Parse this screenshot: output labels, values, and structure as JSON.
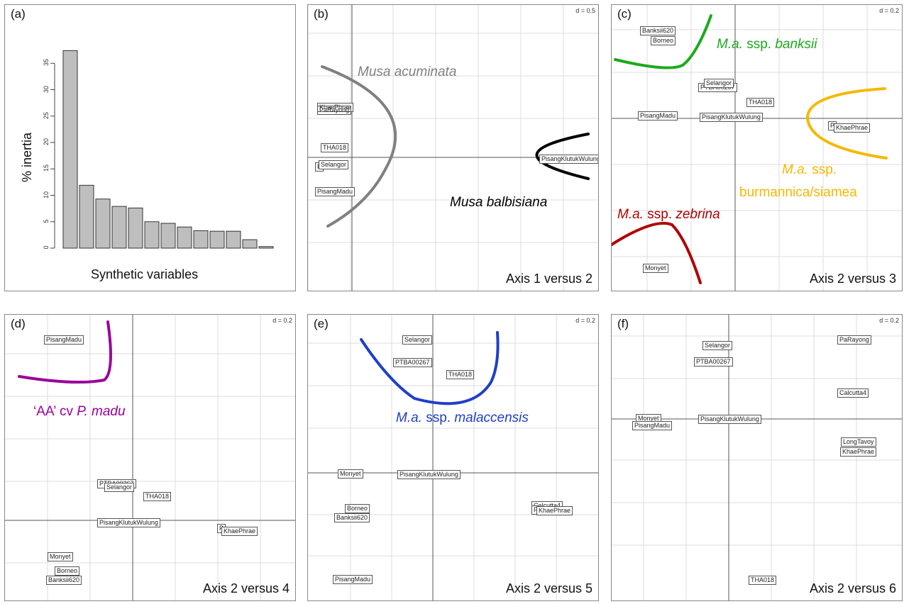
{
  "colors": {
    "bar_fill": "#bebebe",
    "grid": "#dcdcdc",
    "axis": "#555555",
    "musa_acuminata": "#808080",
    "musa_balbisiana": "#000000",
    "banksii": "#1aaa1a",
    "burmannica": "#f5b800",
    "zebrina": "#b00000",
    "madu": "#990099",
    "malaccensis": "#1f3fc8"
  },
  "chart_data": [
    {
      "type": "bar",
      "panel": "(a)",
      "ylabel": "% inertia",
      "xlabel": "Synthetic variables",
      "values": [
        37.4,
        11.9,
        9.3,
        7.9,
        7.6,
        5.0,
        4.7,
        4.0,
        3.3,
        3.2,
        3.2,
        1.6,
        0.3
      ],
      "ylim": [
        0,
        40
      ],
      "yticks": [
        "0",
        "5",
        "10",
        "15",
        "20",
        "25",
        "30",
        "35"
      ],
      "grid": false
    },
    {
      "type": "scatter",
      "panel": "(b)",
      "d_label": "d = 0.5",
      "caption": "Axis 1 versus 2",
      "points": [
        "KhaePhrae",
        "PaRayong",
        "THA018",
        "Selangor",
        "P",
        "PisangMadu",
        "PisangKlutukWulung"
      ],
      "groups": [
        {
          "text": "Musa acuminata",
          "italic": "Musa acuminata",
          "color_key": "musa_acuminata"
        },
        {
          "text": "Musa balbisiana",
          "italic": "Musa balbisiana",
          "color_key": "musa_balbisiana"
        }
      ]
    },
    {
      "type": "scatter",
      "panel": "(c)",
      "d_label": "d = 0.2",
      "caption": "Axis 2 versus 3",
      "points": [
        "Banksii620",
        "Borneo",
        "Selangor",
        "PTBA00267",
        "THA018",
        "PisangMadu",
        "PisangKlutukWulung",
        "P",
        "KhaePhrae",
        "Monyet"
      ],
      "groups": [
        {
          "prefix": "M.a.",
          "rest": " ssp. ",
          "name": "banksii",
          "color_key": "banksii"
        },
        {
          "prefix": "M.a.",
          "rest": " ssp.",
          "line2": "burmannica/siamea",
          "color_key": "burmannica"
        },
        {
          "prefix": "M.a.",
          "rest": " ssp. ",
          "name": "zebrina",
          "color_key": "zebrina"
        }
      ]
    },
    {
      "type": "scatter",
      "panel": "(d)",
      "d_label": "d = 0.2",
      "caption": "Axis 2 versus 4",
      "points": [
        "PisangMadu",
        "PTBA00267",
        "Selangor",
        "THA018",
        "PisangKlutukWulung",
        "P",
        "KhaePhrae",
        "Monyet",
        "Borneo",
        "Banksii620"
      ],
      "groups": [
        {
          "prefix": "‘AA’ cv ",
          "name": "P. madu",
          "color_key": "madu"
        }
      ]
    },
    {
      "type": "scatter",
      "panel": "(e)",
      "d_label": "d = 0.2",
      "caption": "Axis 2 versus 5",
      "points": [
        "Selangor",
        "PTBA00267",
        "THA018",
        "Monyet",
        "PisangKlutukWulung",
        "Calcutta4",
        "P",
        "KhaePhrae",
        "Borneo",
        "Banksii620",
        "PisangMadu"
      ],
      "groups": [
        {
          "prefix": "M.a.",
          "rest": " ssp. ",
          "name": "malaccensis",
          "color_key": "malaccensis"
        }
      ]
    },
    {
      "type": "scatter",
      "panel": "(f)",
      "d_label": "d = 0.2",
      "caption": "Axis 2 versus 6",
      "points": [
        "Selangor",
        "PTBA00267",
        "PaRayong",
        "Calcutta4",
        "Monyet",
        "PisangMadu",
        "PisangKlutukWulung",
        "LongTavoy",
        "KhaePhrae",
        "THA018"
      ],
      "groups": []
    }
  ]
}
